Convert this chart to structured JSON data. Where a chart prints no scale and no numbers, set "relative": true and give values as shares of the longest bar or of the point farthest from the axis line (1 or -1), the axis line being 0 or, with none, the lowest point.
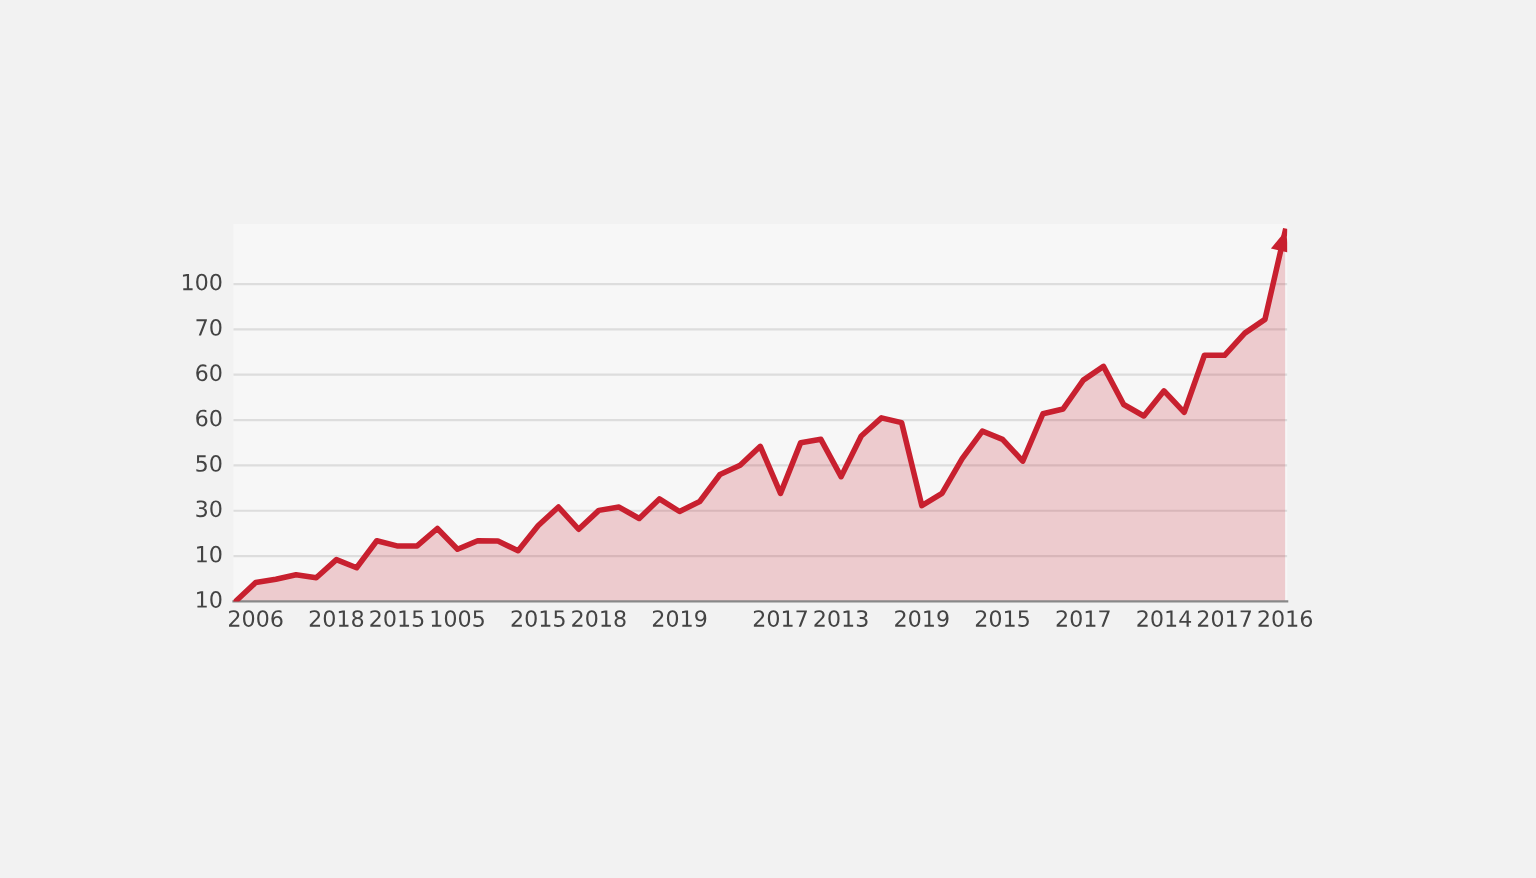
{
  "chart_data": {
    "type": "area",
    "color": "#c8202f",
    "relative": true,
    "categories": [
      null,
      "2006",
      null,
      null,
      null,
      "2018",
      null,
      null,
      "2015",
      null,
      null,
      "1005",
      null,
      null,
      null,
      "2015",
      null,
      null,
      "2018",
      null,
      null,
      null,
      "2019",
      null,
      null,
      null,
      null,
      "2017",
      null,
      null,
      "2013",
      null,
      null,
      null,
      "2019",
      null,
      null,
      null,
      "2015",
      null,
      null,
      null,
      "2017",
      null,
      null,
      null,
      "2014",
      null,
      null,
      "2017",
      null,
      null,
      "2016"
    ],
    "values": [
      0,
      0.051,
      0.06,
      0.072,
      0.064,
      0.113,
      0.091,
      0.164,
      0.15,
      0.15,
      0.197,
      0.141,
      0.164,
      0.163,
      0.137,
      0.205,
      0.255,
      0.195,
      0.246,
      0.255,
      0.224,
      0.277,
      0.243,
      0.27,
      0.343,
      0.368,
      0.419,
      0.292,
      0.429,
      0.438,
      0.337,
      0.447,
      0.496,
      0.483,
      0.259,
      0.292,
      0.386,
      0.46,
      0.438,
      0.379,
      0.507,
      0.52,
      0.598,
      0.635,
      0.532,
      0.501,
      0.569,
      0.511,
      0.665,
      0.665,
      0.725,
      0.762,
      1
    ],
    "annotations": [
      "10",
      "10",
      "30",
      "50",
      "60",
      "60",
      "70",
      "100"
    ],
    "grid": "y",
    "marker": "none",
    "line_style": "solid"
  }
}
